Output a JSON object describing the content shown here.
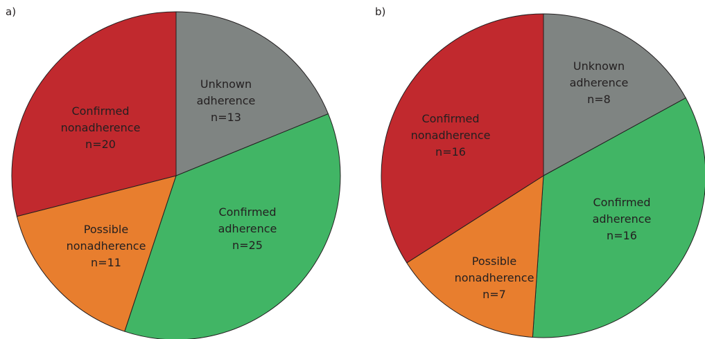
{
  "chart_data": [
    {
      "type": "pie",
      "panel_label": "a)",
      "slices": [
        {
          "name": "Unknown adherence",
          "value": 13,
          "color": "#7f8482",
          "label_lines": [
            "Unknown",
            "adherence",
            "n=13"
          ]
        },
        {
          "name": "Confirmed adherence",
          "value": 25,
          "color": "#41b565",
          "label_lines": [
            "Confirmed",
            "adherence",
            "n=25"
          ]
        },
        {
          "name": "Possible nonadherence",
          "value": 11,
          "color": "#e87e2e",
          "label_lines": [
            "Possible",
            "nonadherence",
            "n=11"
          ]
        },
        {
          "name": "Confirmed nonadherence",
          "value": 20,
          "color": "#c1292e",
          "label_lines": [
            "Confirmed",
            "nonadherence",
            "n=20"
          ]
        }
      ]
    },
    {
      "type": "pie",
      "panel_label": "b)",
      "slices": [
        {
          "name": "Unknown adherence",
          "value": 8,
          "color": "#7f8482",
          "label_lines": [
            "Unknown",
            "adherence",
            "n=8"
          ]
        },
        {
          "name": "Confirmed adherence",
          "value": 16,
          "color": "#41b565",
          "label_lines": [
            "Confirmed",
            "adherence",
            "n=16"
          ]
        },
        {
          "name": "Possible nonadherence",
          "value": 7,
          "color": "#e87e2e",
          "label_lines": [
            "Possible",
            "nonadherence",
            "n=7"
          ]
        },
        {
          "name": "Confirmed nonadherence",
          "value": 16,
          "color": "#c1292e",
          "label_lines": [
            "Confirmed",
            "nonadherence",
            "n=16"
          ]
        }
      ]
    }
  ]
}
